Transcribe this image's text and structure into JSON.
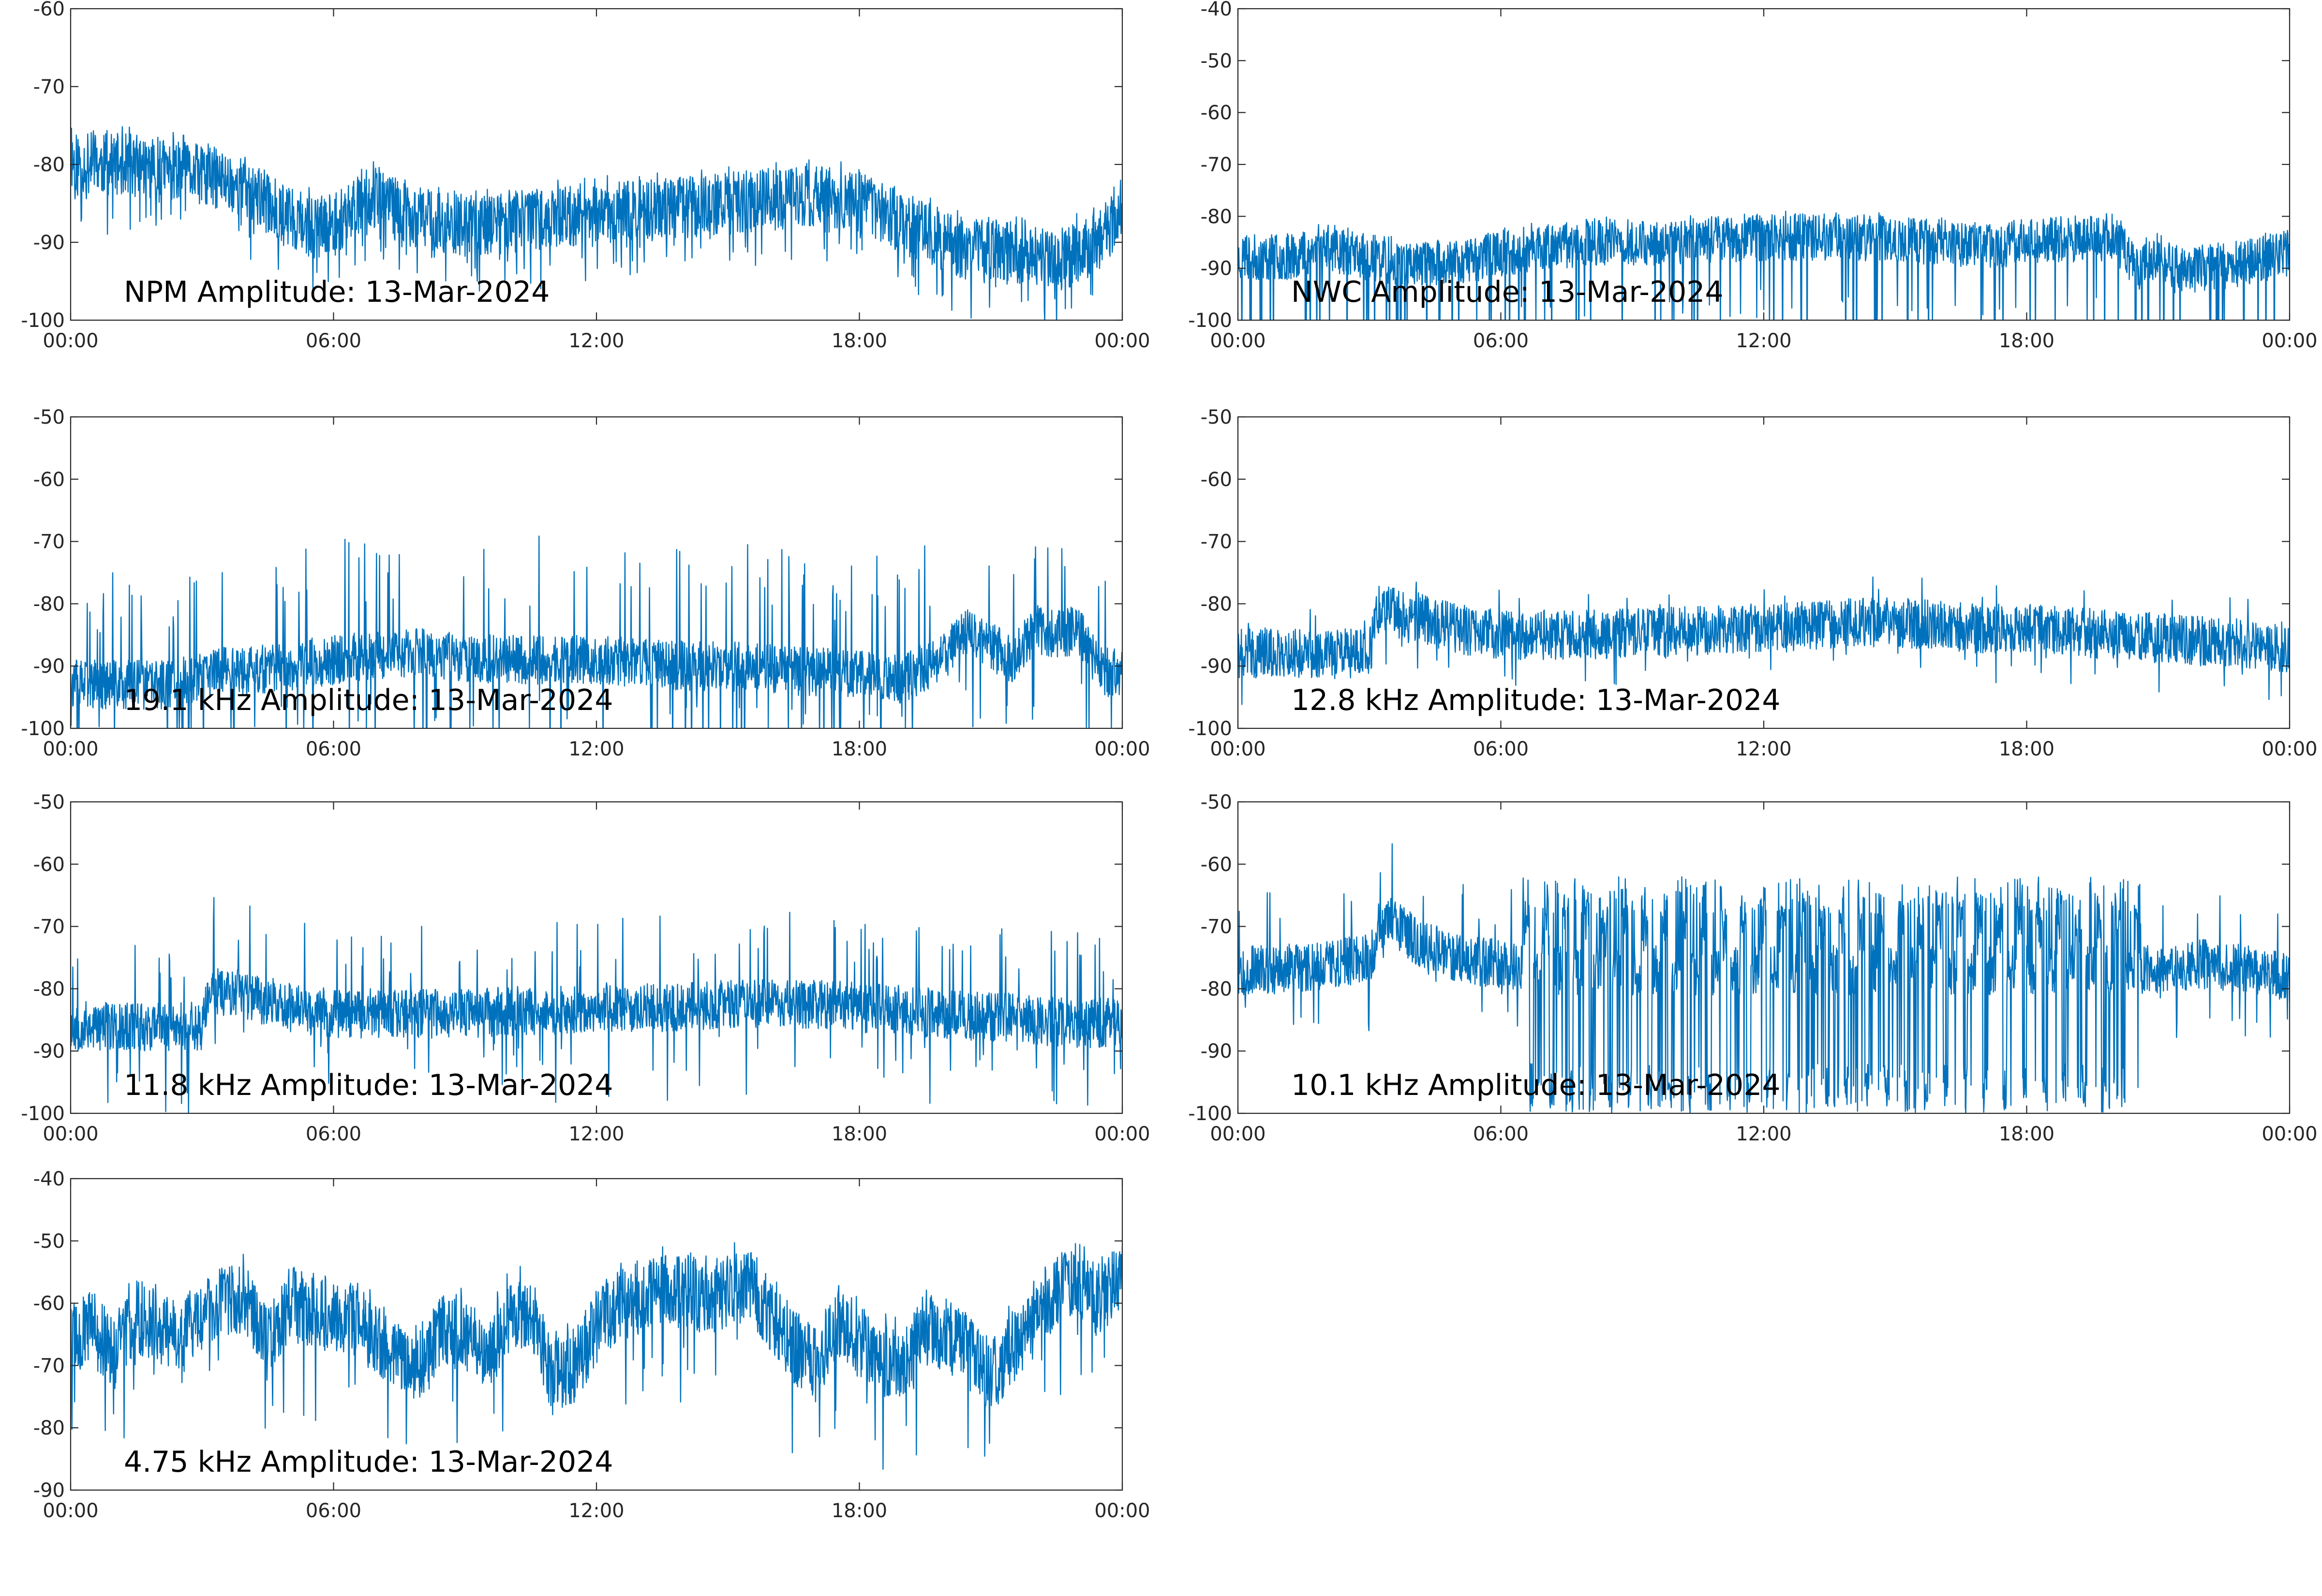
{
  "figure": {
    "background": "#ffffff",
    "line_color": "#0072BD",
    "axis_color": "#262626"
  },
  "chart_data": [
    {
      "type": "line",
      "title": "NPM Amplitude: 13-Mar-2024",
      "xticks": [
        "00:00",
        "06:00",
        "12:00",
        "18:00",
        "00:00"
      ],
      "xlim_hours": [
        0,
        24
      ],
      "ylim": [
        -100,
        -60
      ],
      "yticks": [
        -100,
        -90,
        -80,
        -70,
        -60
      ],
      "noise": {
        "band": 4,
        "spike": 0.12,
        "spike_down": 3,
        "spike_up": 2,
        "seed": 11
      },
      "series": [
        {
          "x": [
            0,
            0.5,
            1,
            1.5,
            2,
            2.5,
            3,
            3.5,
            4,
            4.5,
            5,
            5.5,
            6,
            6.5,
            7,
            7.5,
            8,
            9,
            10,
            11,
            12,
            13,
            14,
            15,
            16,
            17,
            18,
            19,
            20,
            20.5,
            21,
            21.5,
            22,
            22.5,
            23,
            23.5,
            24
          ],
          "y": [
            -79.5,
            -80,
            -80,
            -80,
            -80.5,
            -81,
            -81.5,
            -82,
            -83,
            -85,
            -87,
            -88,
            -88,
            -85,
            -84,
            -86,
            -87,
            -88,
            -87.5,
            -87,
            -86.5,
            -86,
            -85.5,
            -85,
            -84.5,
            -84,
            -85,
            -87.5,
            -90,
            -91,
            -91,
            -91.5,
            -92,
            -92.5,
            -91,
            -90,
            -85
          ]
        }
      ]
    },
    {
      "type": "line",
      "title": "NWC Amplitude: 13-Mar-2024",
      "xticks": [
        "00:00",
        "06:00",
        "12:00",
        "18:00",
        "00:00"
      ],
      "xlim_hours": [
        0,
        24
      ],
      "ylim": [
        -100,
        -40
      ],
      "yticks": [
        -100,
        -90,
        -80,
        -70,
        -60,
        -50,
        -40
      ],
      "noise": {
        "band": 4.5,
        "spike": 0.1,
        "spike_down": 10,
        "spike_up": 2,
        "seed": 23
      },
      "series": [
        {
          "x": [
            0,
            1,
            2,
            3,
            4,
            5,
            6,
            7,
            8,
            9,
            10,
            11,
            12,
            13,
            14,
            15,
            16,
            17,
            18,
            19,
            20,
            20.5,
            21,
            21.5,
            22,
            23,
            24
          ],
          "y": [
            -88,
            -88,
            -86,
            -88,
            -89,
            -89,
            -87,
            -86,
            -85,
            -85,
            -85,
            -84.5,
            -84,
            -84,
            -84,
            -84.5,
            -85,
            -85.5,
            -85,
            -84.5,
            -84,
            -90,
            -88,
            -91,
            -90,
            -89,
            -87
          ]
        }
      ]
    },
    {
      "type": "line",
      "title": "19.1 kHz Amplitude: 13-Mar-2024",
      "xticks": [
        "00:00",
        "06:00",
        "12:00",
        "18:00",
        "00:00"
      ],
      "xlim_hours": [
        0,
        24
      ],
      "ylim": [
        -100,
        -50
      ],
      "yticks": [
        -100,
        -90,
        -80,
        -70,
        -60,
        -50
      ],
      "noise": {
        "band": 4,
        "spike": 0.08,
        "spike_down": 6,
        "spike_up": 8,
        "seed": 37
      },
      "series": [
        {
          "x": [
            0,
            1,
            2,
            3,
            3.5,
            4,
            5,
            6,
            7,
            8,
            9,
            10,
            11,
            12,
            13,
            14,
            15,
            16,
            17,
            18,
            19,
            20,
            20.5,
            21,
            21.5,
            22,
            22.5,
            23,
            23.5,
            24
          ],
          "y": [
            -93,
            -93,
            -93,
            -92,
            -90,
            -91,
            -90,
            -89,
            -88,
            -88,
            -88.5,
            -89,
            -89,
            -89,
            -89.5,
            -90,
            -90,
            -90.5,
            -91,
            -91.5,
            -92,
            -88,
            -84,
            -87,
            -89,
            -84,
            -85,
            -84,
            -91,
            -91
          ]
        }
      ]
    },
    {
      "type": "line",
      "title": "12.8 kHz Amplitude: 13-Mar-2024",
      "xticks": [
        "00:00",
        "06:00",
        "12:00",
        "18:00",
        "00:00"
      ],
      "xlim_hours": [
        0,
        24
      ],
      "ylim": [
        -100,
        -50
      ],
      "yticks": [
        -100,
        -90,
        -80,
        -70,
        -60,
        -50
      ],
      "noise": {
        "band": 4,
        "spike": 0.03,
        "spike_down": 3,
        "spike_up": 3,
        "seed": 41
      },
      "series": [
        {
          "x": [
            0,
            1,
            2,
            3,
            3.2,
            4,
            5,
            6,
            7,
            8,
            9,
            10,
            11,
            12,
            13,
            14,
            15,
            16,
            17,
            18,
            19,
            20,
            21,
            22,
            23,
            24
          ],
          "y": [
            -88,
            -88,
            -88,
            -88,
            -81,
            -82,
            -84,
            -85,
            -85,
            -85,
            -84.5,
            -84.5,
            -84,
            -84,
            -83.5,
            -83,
            -83,
            -83.5,
            -84,
            -84,
            -84.5,
            -85,
            -85.5,
            -86,
            -86.5,
            -87
          ]
        }
      ]
    },
    {
      "type": "line",
      "title": "11.8 kHz Amplitude: 13-Mar-2024",
      "xticks": [
        "00:00",
        "06:00",
        "12:00",
        "18:00",
        "00:00"
      ],
      "xlim_hours": [
        0,
        24
      ],
      "ylim": [
        -100,
        -50
      ],
      "yticks": [
        -100,
        -90,
        -80,
        -70,
        -60,
        -50
      ],
      "noise": {
        "band": 4,
        "spike": 0.06,
        "spike_down": 5,
        "spike_up": 6,
        "seed": 53
      },
      "series": [
        {
          "x": [
            0,
            1,
            2,
            3,
            3.2,
            4,
            5,
            6,
            7,
            8,
            9,
            10,
            11,
            12,
            13,
            14,
            15,
            16,
            17,
            18,
            19,
            20,
            21,
            22,
            23,
            24
          ],
          "y": [
            -86,
            -86,
            -86,
            -86,
            -80,
            -81,
            -83,
            -84,
            -84,
            -84,
            -84,
            -83.5,
            -83.5,
            -83,
            -83,
            -83,
            -82.5,
            -82.5,
            -82.5,
            -83,
            -83.5,
            -84,
            -84.5,
            -85,
            -85.5,
            -85.5
          ]
        }
      ]
    },
    {
      "type": "line",
      "title": "10.1 kHz Amplitude: 13-Mar-2024",
      "xticks": [
        "00:00",
        "06:00",
        "12:00",
        "18:00",
        "00:00"
      ],
      "xlim_hours": [
        0,
        24
      ],
      "ylim": [
        -100,
        -50
      ],
      "yticks": [
        -100,
        -90,
        -80,
        -70,
        -60,
        -50
      ],
      "noise": {
        "band": 4,
        "spike": 0.04,
        "spike_down": 4,
        "spike_up": 5,
        "oscillation": {
          "start": 6.5,
          "end": 20.6,
          "period": 0.45,
          "top": -65,
          "bottom": -100
        },
        "seed": 67
      },
      "series": [
        {
          "x": [
            0,
            1,
            2,
            3,
            3.5,
            4,
            5,
            6,
            7,
            8,
            9,
            10,
            11,
            12,
            13,
            14,
            15,
            16,
            17,
            18,
            19,
            20,
            20.6,
            21,
            22,
            23,
            24
          ],
          "y": [
            -77,
            -77,
            -76,
            -75,
            -69,
            -72,
            -75,
            -76,
            -77,
            -77,
            -77,
            -77,
            -77,
            -77,
            -77,
            -77,
            -77,
            -77,
            -77,
            -77,
            -77,
            -77,
            -77,
            -77,
            -76,
            -77,
            -78
          ]
        }
      ]
    },
    {
      "type": "line",
      "title": "4.75 kHz Amplitude: 13-Mar-2024",
      "xticks": [
        "00:00",
        "06:00",
        "12:00",
        "18:00",
        "00:00"
      ],
      "xlim_hours": [
        0,
        24
      ],
      "ylim": [
        -90,
        -40
      ],
      "yticks": [
        -90,
        -80,
        -70,
        -60,
        -50,
        -40
      ],
      "noise": {
        "band": 6,
        "spike": 0.05,
        "spike_down": 6,
        "spike_up": 3,
        "seed": 79
      },
      "series": [
        {
          "x": [
            0,
            0.5,
            1,
            1.5,
            2,
            2.5,
            3,
            3.5,
            4,
            4.5,
            5,
            5.5,
            6,
            6.5,
            7,
            7.5,
            8,
            8.5,
            9,
            9.5,
            10,
            10.5,
            11,
            11.5,
            12,
            12.5,
            13,
            13.5,
            14,
            14.5,
            15,
            15.5,
            16,
            16.5,
            17,
            17.5,
            18,
            18.5,
            19,
            19.5,
            20,
            20.5,
            21,
            21.5,
            22,
            22.5,
            23,
            23.5,
            24
          ],
          "y": [
            -66,
            -64,
            -68,
            -62,
            -64,
            -66,
            -62,
            -60,
            -59,
            -67,
            -60,
            -61,
            -62,
            -63,
            -66,
            -68,
            -70,
            -64,
            -65,
            -68,
            -62,
            -61,
            -72,
            -70,
            -64,
            -60,
            -59,
            -58,
            -58,
            -59,
            -58,
            -57,
            -62,
            -67,
            -70,
            -63,
            -66,
            -69,
            -70,
            -64,
            -65,
            -68,
            -72,
            -67,
            -62,
            -58,
            -56,
            -60,
            -55
          ]
        }
      ]
    }
  ]
}
